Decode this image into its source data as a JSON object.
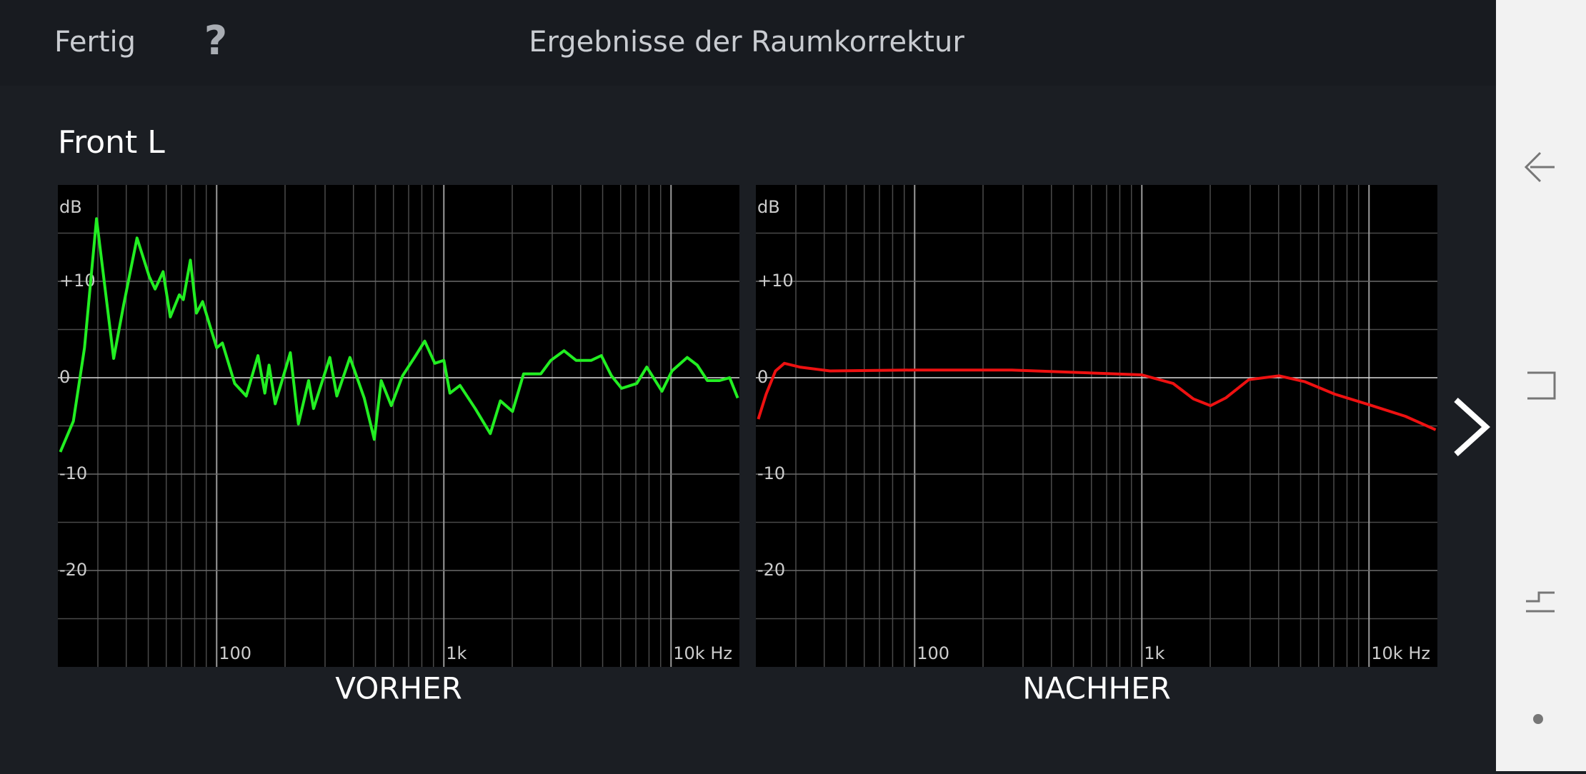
{
  "header": {
    "done": "Fertig",
    "help": "?",
    "title": "Ergebnisse der Raumkorrektur"
  },
  "section": "Front L",
  "chart_data": [
    {
      "type": "line",
      "caption": "VORHER",
      "ylabel": "dB",
      "xscale": "log",
      "xlim": [
        20,
        20000
      ],
      "ylim": [
        -30,
        20
      ],
      "xticks": [
        {
          "value": 100,
          "label": "100"
        },
        {
          "value": 1000,
          "label": "1k"
        },
        {
          "value": 10000,
          "label": "10k Hz"
        }
      ],
      "xminor": [
        30,
        40,
        50,
        60,
        70,
        80,
        90,
        200,
        300,
        400,
        500,
        600,
        700,
        800,
        900,
        2000,
        3000,
        4000,
        5000,
        6000,
        7000,
        8000,
        9000
      ],
      "yticks": [
        {
          "value": 10,
          "label": "+10"
        },
        0,
        -10,
        -20
      ],
      "yminor": [
        15,
        5,
        -5,
        -15,
        -25
      ],
      "series": [
        {
          "color": "#22ee22",
          "x": [
            20.5,
            23.4,
            26.2,
            29.6,
            35.2,
            39,
            44.6,
            50.5,
            53.6,
            58.1,
            62.5,
            68.5,
            71.3,
            76.6,
            81.5,
            86.7,
            93.1,
            100,
            106,
            120,
            135,
            152,
            163,
            170,
            181,
            211,
            229,
            254,
            267,
            315,
            338,
            386,
            446,
            494,
            530,
            587,
            658,
            743,
            824,
            912,
            1000,
            1064,
            1178,
            1374,
            1601,
            1774,
            2006,
            2244,
            2672,
            2958,
            3380,
            3820,
            4456,
            4935,
            5469,
            6058,
            7068,
            7822,
            9120,
            10100,
            11780,
            13050,
            14450,
            16350,
            18110,
            19650
          ],
          "values": [
            -7.7,
            -4.5,
            3.1,
            16.5,
            2,
            7.6,
            14.5,
            10.5,
            9.2,
            11,
            6.3,
            8.6,
            8.1,
            12.2,
            6.7,
            7.9,
            5.5,
            3.1,
            3.6,
            -0.6,
            -1.9,
            2.3,
            -1.6,
            1.3,
            -2.7,
            2.6,
            -4.8,
            -0.3,
            -3.2,
            2.1,
            -1.9,
            2.1,
            -2.1,
            -6.4,
            -0.3,
            -2.9,
            0.2,
            2.1,
            3.8,
            1.5,
            1.8,
            -1.6,
            -0.8,
            -3.2,
            -5.8,
            -2.4,
            -3.5,
            0.4,
            0.4,
            1.8,
            2.8,
            1.8,
            1.8,
            2.3,
            0.2,
            -1.1,
            -0.6,
            1.1,
            -1.4,
            0.7,
            2.1,
            1.3,
            -0.3,
            -0.3,
            0,
            -2.1
          ]
        }
      ]
    },
    {
      "type": "line",
      "caption": "NACHHER",
      "ylabel": "dB",
      "xscale": "log",
      "xlim": [
        20,
        20000
      ],
      "ylim": [
        -30,
        20
      ],
      "xticks": [
        {
          "value": 100,
          "label": "100"
        },
        {
          "value": 1000,
          "label": "1k"
        },
        {
          "value": 10000,
          "label": "10k Hz"
        }
      ],
      "xminor": [
        30,
        40,
        50,
        60,
        70,
        80,
        90,
        200,
        300,
        400,
        500,
        600,
        700,
        800,
        900,
        2000,
        3000,
        4000,
        5000,
        6000,
        7000,
        8000,
        9000
      ],
      "yticks": [
        {
          "value": 10,
          "label": "+10"
        },
        0,
        -10,
        -20
      ],
      "yminor": [
        15,
        5,
        -5,
        -15,
        -25
      ],
      "series": [
        {
          "color": "#ee1111",
          "x": [
            20.5,
            22.2,
            24.4,
            26.7,
            31.2,
            42.4,
            100,
            267,
            1000,
            1374,
            1687,
            2006,
            2339,
            2958,
            4018,
            5199,
            7068,
            10000,
            14450,
            19650
          ],
          "values": [
            -4.3,
            -1.7,
            0.7,
            1.5,
            1.1,
            0.7,
            0.8,
            0.8,
            0.3,
            -0.6,
            -2.2,
            -2.9,
            -2.1,
            -0.2,
            0.2,
            -0.4,
            -1.7,
            -2.8,
            -4,
            -5.4
          ]
        }
      ]
    }
  ]
}
